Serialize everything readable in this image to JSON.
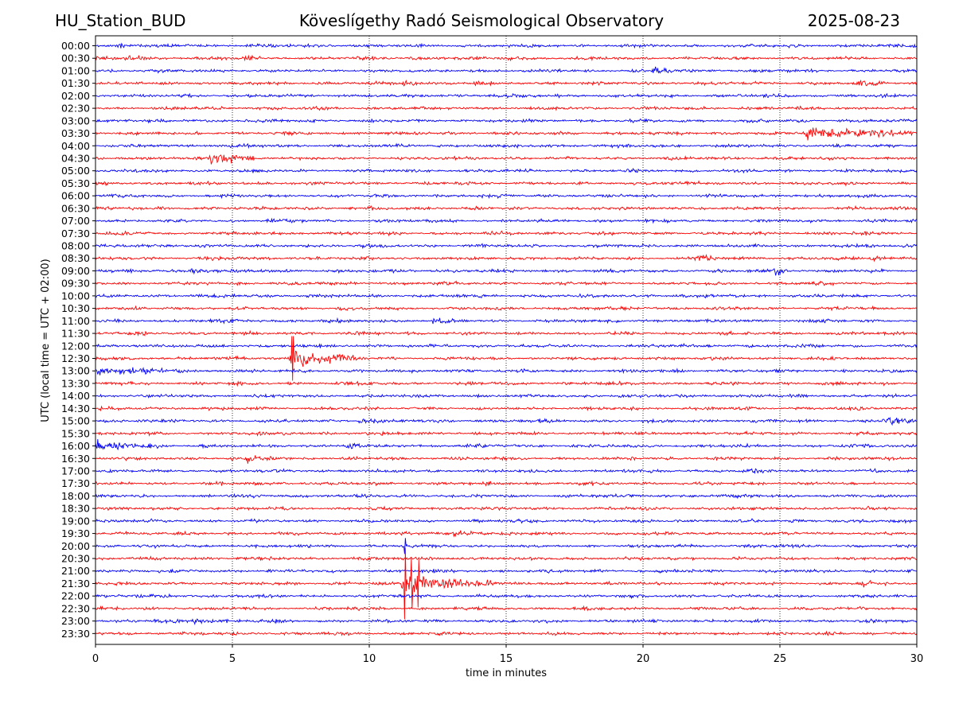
{
  "header": {
    "station": "HU_Station_BUD",
    "observatory": "Köveslígethy Radó Seismological Observatory",
    "date": "2025-08-23"
  },
  "chart_data": {
    "type": "line",
    "title": "Köveslígethy Radó Seismological Observatory",
    "xlabel": "time in minutes",
    "ylabel": "UTC (local time = UTC + 02:00)",
    "xlim": [
      0,
      30
    ],
    "x_ticks": [
      0,
      5,
      10,
      15,
      20,
      25,
      30
    ],
    "grid": "vertical dotted at 5, 10, 15, 20, 25",
    "row_labels": [
      "00:00",
      "00:30",
      "01:00",
      "01:30",
      "02:00",
      "02:30",
      "03:00",
      "03:30",
      "04:00",
      "04:30",
      "05:00",
      "05:30",
      "06:00",
      "06:30",
      "07:00",
      "07:30",
      "08:00",
      "08:30",
      "09:00",
      "09:30",
      "10:00",
      "10:30",
      "11:00",
      "11:30",
      "12:00",
      "12:30",
      "13:00",
      "13:30",
      "14:00",
      "14:30",
      "15:00",
      "15:30",
      "16:00",
      "16:30",
      "17:00",
      "17:30",
      "18:00",
      "18:30",
      "19:00",
      "19:30",
      "20:00",
      "20:30",
      "21:00",
      "21:30",
      "22:00",
      "22:30",
      "23:00",
      "23:30"
    ],
    "colors": {
      "even_rows": "#0000ff",
      "odd_rows": "#ff0000"
    },
    "noise_level": 3,
    "events": [
      {
        "row": "00:00",
        "start_min": 0.8,
        "duration_min": 0.6,
        "amplitude": 6
      },
      {
        "row": "00:30",
        "start_min": 1.1,
        "duration_min": 0.8,
        "amplitude": 6
      },
      {
        "row": "00:30",
        "start_min": 5.5,
        "duration_min": 0.6,
        "amplitude": 5
      },
      {
        "row": "00:30",
        "start_min": 15.0,
        "duration_min": 0.5,
        "amplitude": 6
      },
      {
        "row": "01:00",
        "start_min": 20.4,
        "duration_min": 1.0,
        "amplitude": 6
      },
      {
        "row": "01:30",
        "start_min": 11.2,
        "duration_min": 1.2,
        "amplitude": 5
      },
      {
        "row": "01:30",
        "start_min": 13.8,
        "duration_min": 0.5,
        "amplitude": 6
      },
      {
        "row": "01:30",
        "start_min": 27.8,
        "duration_min": 1.2,
        "amplitude": 5
      },
      {
        "row": "03:30",
        "start_min": 25.9,
        "duration_min": 4.0,
        "amplitude": 13
      },
      {
        "row": "04:30",
        "start_min": 4.2,
        "duration_min": 1.6,
        "amplitude": 14
      },
      {
        "row": "08:30",
        "start_min": 22.0,
        "duration_min": 0.9,
        "amplitude": 6
      },
      {
        "row": "08:30",
        "start_min": 28.3,
        "duration_min": 1.0,
        "amplitude": 5
      },
      {
        "row": "09:00",
        "start_min": 3.5,
        "duration_min": 1.0,
        "amplitude": 6
      },
      {
        "row": "09:00",
        "start_min": 24.8,
        "duration_min": 0.6,
        "amplitude": 8
      },
      {
        "row": "11:00",
        "start_min": 12.3,
        "duration_min": 1.0,
        "amplitude": 5
      },
      {
        "row": "12:30",
        "start_min": 7.1,
        "duration_min": 2.5,
        "amplitude": 20
      },
      {
        "row": "13:00",
        "start_min": 0.0,
        "duration_min": 4.0,
        "amplitude": 6
      },
      {
        "row": "15:00",
        "start_min": 9.6,
        "duration_min": 1.0,
        "amplitude": 6
      },
      {
        "row": "15:00",
        "start_min": 28.8,
        "duration_min": 1.2,
        "amplitude": 9
      },
      {
        "row": "16:00",
        "start_min": 0.0,
        "duration_min": 2.5,
        "amplitude": 8
      },
      {
        "row": "16:00",
        "start_min": 9.2,
        "duration_min": 0.5,
        "amplitude": 8
      },
      {
        "row": "16:30",
        "start_min": 5.5,
        "duration_min": 1.3,
        "amplitude": 6
      },
      {
        "row": "19:30",
        "start_min": 13.1,
        "duration_min": 1.2,
        "amplitude": 8
      },
      {
        "row": "21:30",
        "start_min": 11.2,
        "duration_min": 3.5,
        "amplitude": 22
      },
      {
        "row": "21:30",
        "start_min": 28.0,
        "duration_min": 0.7,
        "amplitude": 5
      },
      {
        "row": "23:00",
        "start_min": 3.5,
        "duration_min": 1.8,
        "amplitude": 5
      }
    ],
    "spikes": [
      {
        "row": "12:30",
        "at_min": 7.2,
        "amplitude": 28
      },
      {
        "row": "20:00",
        "at_min": 11.3,
        "amplitude": 10
      },
      {
        "row": "21:30",
        "at_min": 11.3,
        "amplitude": 45
      },
      {
        "row": "21:30",
        "at_min": 11.55,
        "amplitude": 32
      },
      {
        "row": "21:30",
        "at_min": 11.8,
        "amplitude": 30
      }
    ]
  }
}
